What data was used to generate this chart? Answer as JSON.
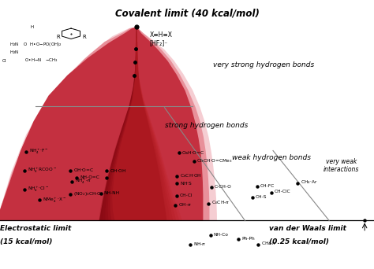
{
  "title": "Covalent limit (40 kcal/mol)",
  "bg_color": "#ffffff",
  "shape_dark": "#8b0a14",
  "shape_mid": "#c43040",
  "shape_light": "#e8909a",
  "shape_vlight": "#f5cdd2",
  "bottom_left_label_line1": "Electrostatic limit",
  "bottom_left_label_line2": "(15 kcal/mol)",
  "bottom_right_label_line1": "van der Waals limit",
  "bottom_right_label_line2": "(0.25 kcal/mol)",
  "label_very_strong": "very strong hydrogen bonds",
  "label_strong": "strong hydrogen bonds",
  "label_weak": "weak hydrogen bonds",
  "label_very_weak": "very weak\ninteractions",
  "top_annotation": "X≡H≡X\n[HF₂]⁻",
  "figsize": [
    4.74,
    3.42
  ],
  "dpi": 100
}
